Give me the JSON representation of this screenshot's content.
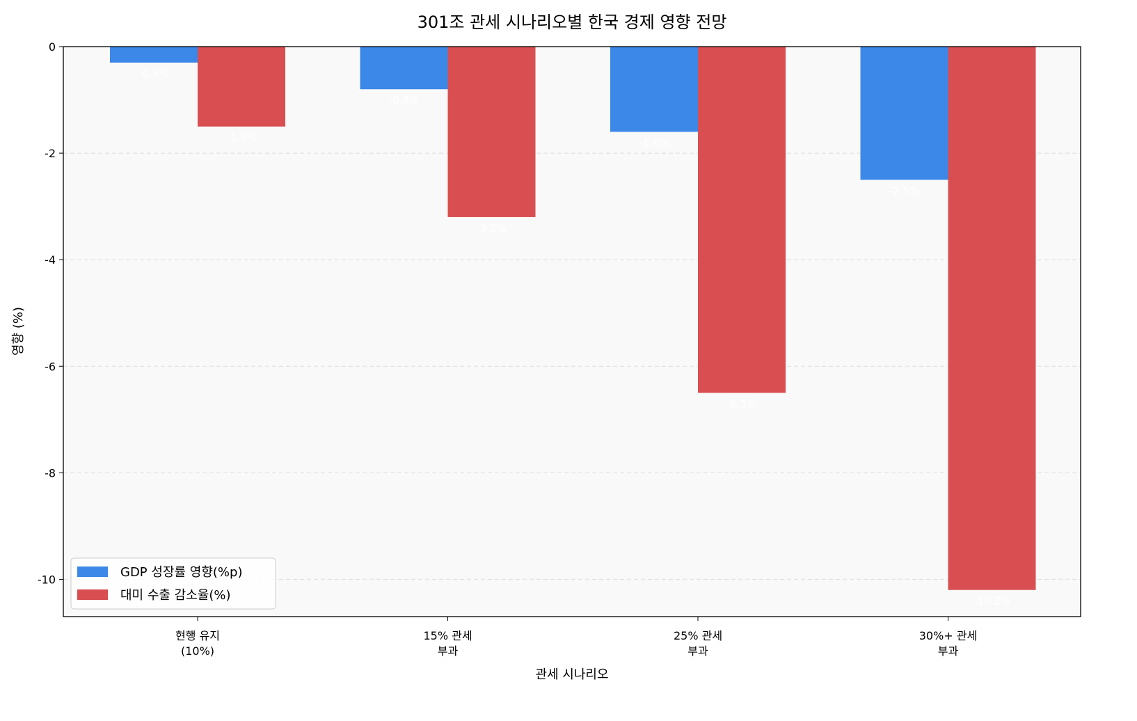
{
  "chart_data": {
    "type": "bar",
    "title": "301조 관세 시나리오별 한국 경제 영향 전망",
    "xlabel": "관세 시나리오",
    "ylabel": "영향 (%)",
    "categories": [
      [
        "현행 유지",
        "(10%)"
      ],
      [
        "15% 관세",
        "부과"
      ],
      [
        "25% 관세",
        "부과"
      ],
      [
        "30%+ 관세",
        "부과"
      ]
    ],
    "series": [
      {
        "name": "GDP 성장률 영향(%p)",
        "values": [
          -0.3,
          -0.8,
          -1.6,
          -2.5
        ],
        "color": "#3b88e8",
        "labels": [
          "-0.3%",
          "-0.8%",
          "-1.6%",
          "-2.5%"
        ]
      },
      {
        "name": "대미 수출 감소율(%)",
        "values": [
          -1.5,
          -3.2,
          -6.5,
          -10.2
        ],
        "color": "#d94e50",
        "labels": [
          "-1.5%",
          "-3.2%",
          "-6.5%",
          "-10.2%"
        ]
      }
    ],
    "ylim": [
      -10.7,
      0
    ],
    "yticks": [
      0,
      -2,
      -4,
      -6,
      -8,
      -10
    ],
    "grid": "y dashed",
    "legend": "lower-left",
    "background": "#f9f9f9"
  }
}
